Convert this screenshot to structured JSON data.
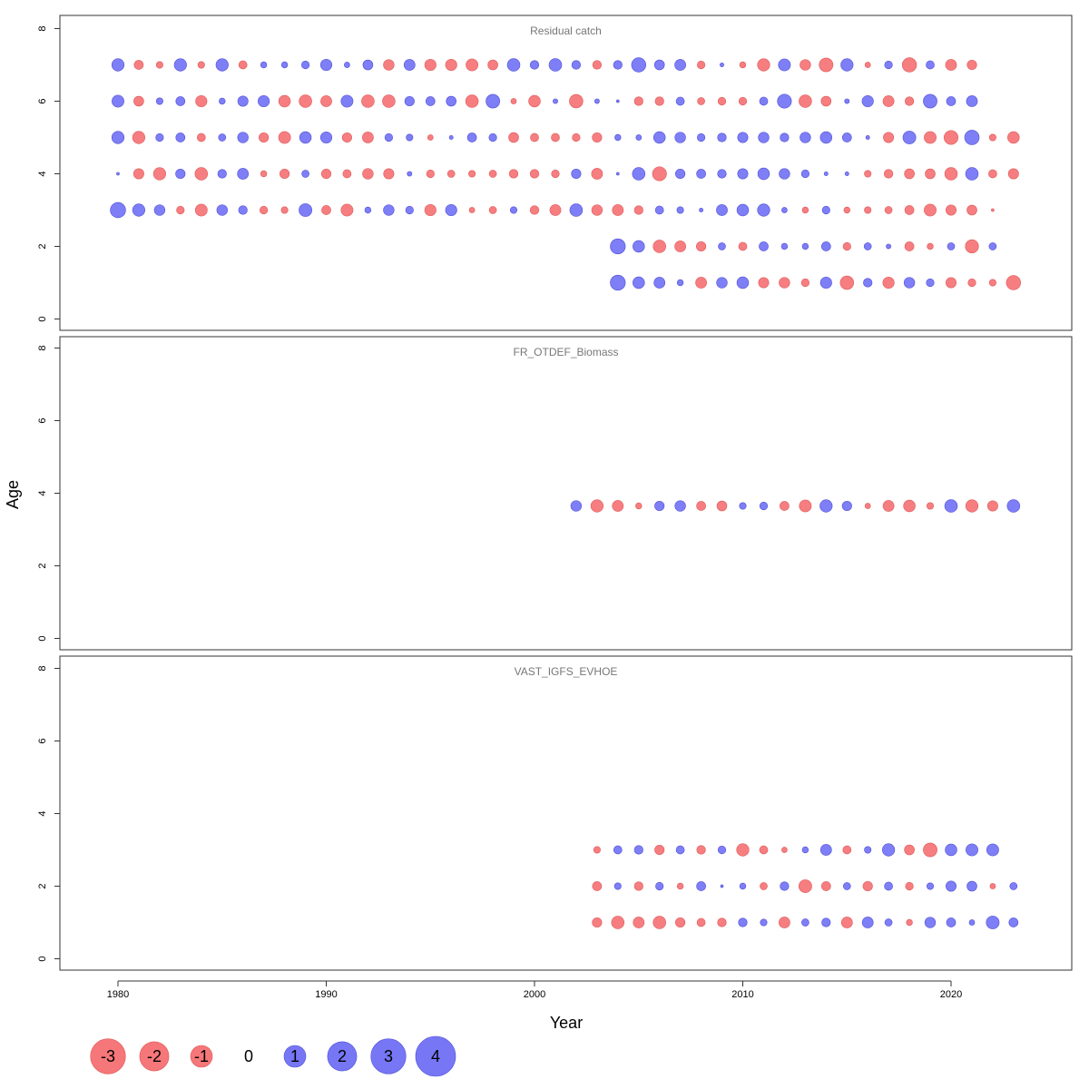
{
  "chart_data": {
    "type": "scatter",
    "subtype": "bubble",
    "xlabel": "Year",
    "ylabel": "Age",
    "xlim": [
      1977,
      2026
    ],
    "ylim": [
      -0.3,
      8.3
    ],
    "x_ticks": [
      1980,
      1990,
      2000,
      2010,
      2020
    ],
    "y_ticks": [
      0,
      2,
      4,
      6,
      8
    ],
    "colors": {
      "negative": "#F67779",
      "positive": "#7777F6",
      "negative_edge": "#E05858",
      "positive_edge": "#5050D8"
    },
    "legend": {
      "placement": "bottom-left",
      "values": [
        -3,
        -2,
        -1,
        0,
        1,
        2,
        3,
        4
      ],
      "labels": [
        "-3",
        "-2",
        "-1",
        "0",
        "1",
        "2",
        "3",
        "4"
      ]
    },
    "panels": [
      {
        "title": "Residual catch",
        "series": [
          {
            "age": 7,
            "start_year": 1980,
            "residuals": [
              2.0,
              -1.1,
              -0.6,
              2.0,
              -0.6,
              2.0,
              -0.9,
              0.5,
              0.5,
              0.8,
              1.7,
              0.4,
              1.3,
              -1.5,
              1.6,
              -1.7,
              -1.7,
              -1.9,
              -1.3,
              2.1,
              1.0,
              2.1,
              1.0,
              -1.0,
              1.0,
              2.7,
              1.3,
              1.6,
              -0.8,
              0.2,
              -0.5,
              -2.0,
              1.9,
              -1.5,
              -2.5,
              2.0,
              -0.4,
              0.8,
              -2.7,
              0.9,
              -1.6,
              -1.2
            ]
          },
          {
            "age": 6,
            "start_year": 1980,
            "residuals": [
              1.9,
              -1.3,
              0.6,
              1.1,
              -1.7,
              0.5,
              1.4,
              1.7,
              -1.8,
              -2.1,
              -1.6,
              1.9,
              -2.1,
              -2.1,
              1.2,
              1.1,
              1.3,
              -2.1,
              2.5,
              -0.4,
              -1.8,
              0.3,
              -2.4,
              0.3,
              0.1,
              -1.0,
              -1.0,
              0.9,
              -0.7,
              -0.8,
              -0.8,
              0.9,
              2.6,
              -2.1,
              -1.3,
              0.3,
              1.7,
              -1.6,
              -1.0,
              2.5,
              1.1,
              1.6
            ]
          },
          {
            "age": 5,
            "start_year": 1980,
            "residuals": [
              2.0,
              -2.0,
              0.8,
              1.1,
              -0.9,
              0.7,
              1.5,
              -1.2,
              -1.9,
              1.8,
              1.7,
              -1.2,
              -1.6,
              0.8,
              0.6,
              -0.4,
              0.2,
              1.1,
              0.8,
              -1.3,
              -0.9,
              -0.9,
              -0.8,
              -1.2,
              0.5,
              0.4,
              1.8,
              1.5,
              0.8,
              1.0,
              1.4,
              1.5,
              1.0,
              1.5,
              1.8,
              1.1,
              0.2,
              -1.4,
              2.2,
              -1.9,
              -2.6,
              2.8,
              -0.6,
              -1.8
            ]
          },
          {
            "age": 4,
            "start_year": 1980,
            "residuals": [
              0.1,
              -1.4,
              -2.0,
              1.2,
              -2.1,
              1.0,
              1.6,
              -0.5,
              -1.2,
              0.7,
              -1.2,
              -0.9,
              -1.5,
              -1.4,
              0.3,
              -0.8,
              -0.7,
              -0.6,
              -0.7,
              -1.0,
              -1.0,
              -0.8,
              1.2,
              -1.6,
              0.1,
              2.1,
              -2.6,
              1.2,
              1.1,
              1.0,
              1.4,
              1.8,
              1.5,
              0.8,
              0.2,
              0.2,
              -0.6,
              -1.0,
              -1.3,
              -1.3,
              -2.1,
              2.1,
              -0.9,
              -1.4
            ]
          },
          {
            "age": 3,
            "start_year": 1980,
            "residuals": [
              3.1,
              2.0,
              1.5,
              -0.8,
              -1.9,
              1.5,
              1.0,
              -0.8,
              -0.6,
              2.2,
              -1.1,
              -1.9,
              0.5,
              1.5,
              0.8,
              -1.7,
              1.7,
              -0.4,
              -0.7,
              0.6,
              -1.0,
              -1.6,
              2.1,
              -1.5,
              -1.6,
              -1.0,
              0.9,
              0.6,
              0.2,
              1.6,
              1.8,
              2.0,
              0.4,
              -0.5,
              0.8,
              -0.5,
              -0.6,
              -0.7,
              -1.1,
              -1.9,
              -1.4,
              -1.3,
              -0.1
            ]
          },
          {
            "age": 2,
            "start_year": 2004,
            "residuals": [
              3.0,
              1.8,
              -2.1,
              -1.6,
              -1.2,
              0.7,
              -0.9,
              1.1,
              0.5,
              0.5,
              1.1,
              -0.8,
              0.7,
              0.3,
              -1.1,
              -0.5,
              0.7,
              -2.3,
              0.7
            ]
          },
          {
            "age": 1,
            "start_year": 2004,
            "residuals": [
              3.0,
              1.8,
              1.6,
              0.5,
              -1.6,
              1.5,
              1.8,
              -1.4,
              -1.5,
              -0.8,
              1.7,
              -2.4,
              1.0,
              -1.7,
              1.5,
              0.8,
              -1.4,
              -0.8,
              -0.6,
              -2.7
            ]
          }
        ]
      },
      {
        "title": "FR_OTDEF_Biomass",
        "series": [
          {
            "age": 3.65,
            "start_year": 2002,
            "residuals": [
              1.5,
              -2.0,
              -1.6,
              -0.5,
              1.2,
              1.5,
              -1.1,
              -1.3,
              0.6,
              0.8,
              -1.1,
              -1.9,
              2.0,
              1.2,
              -0.4,
              -1.6,
              -1.8,
              -0.6,
              2.1,
              -2.0,
              -1.4,
              2.1
            ]
          }
        ]
      },
      {
        "title": "VAST_IGFS_EVHOE",
        "series": [
          {
            "age": 3,
            "start_year": 2003,
            "residuals": [
              -0.6,
              0.9,
              1.0,
              -1.2,
              0.9,
              -1.0,
              0.8,
              -2.0,
              -0.9,
              -0.4,
              0.5,
              1.6,
              -0.9,
              0.6,
              2.0,
              -1.3,
              -2.5,
              1.8,
              1.9,
              1.9
            ]
          },
          {
            "age": 2,
            "start_year": 2003,
            "residuals": [
              -1.1,
              0.6,
              -1.0,
              0.8,
              -0.5,
              1.1,
              0.1,
              0.5,
              -0.7,
              1.0,
              -2.2,
              -1.1,
              0.7,
              -1.2,
              0.9,
              -0.8,
              0.6,
              1.4,
              1.3,
              -0.4,
              0.7
            ]
          },
          {
            "age": 1,
            "start_year": 2003,
            "residuals": [
              -1.2,
              -2.1,
              -1.6,
              -2.1,
              -1.2,
              -0.9,
              -1.0,
              1.0,
              0.6,
              -1.6,
              0.7,
              1.0,
              -1.6,
              1.6,
              0.7,
              -0.5,
              1.5,
              1.1,
              0.4,
              2.2,
              1.1
            ]
          }
        ]
      }
    ]
  }
}
